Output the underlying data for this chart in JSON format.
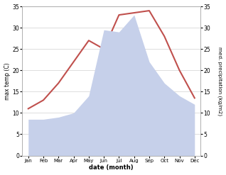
{
  "months": [
    "Jan",
    "Feb",
    "Mar",
    "Apr",
    "May",
    "Jun",
    "Jul",
    "Aug",
    "Sep",
    "Oct",
    "Nov",
    "Dec"
  ],
  "temperature": [
    11,
    13,
    17,
    22,
    27,
    25,
    33,
    33.5,
    34,
    28,
    20,
    13.5
  ],
  "precipitation": [
    8.5,
    8.5,
    9,
    10,
    14,
    29.5,
    29,
    33,
    22,
    17,
    14,
    12
  ],
  "temp_color": "#c0504d",
  "precip_color": "#c6d0ea",
  "ylim_left": [
    0,
    35
  ],
  "ylim_right": [
    0,
    35
  ],
  "yticks_left": [
    0,
    5,
    10,
    15,
    20,
    25,
    30,
    35
  ],
  "yticks_right": [
    0,
    5,
    10,
    15,
    20,
    25,
    30,
    35
  ],
  "xlabel": "date (month)",
  "ylabel_left": "max temp (C)",
  "ylabel_right": "med. precipitation (kg/m2)",
  "background_color": "#ffffff",
  "grid_color": "#d0d0d0"
}
